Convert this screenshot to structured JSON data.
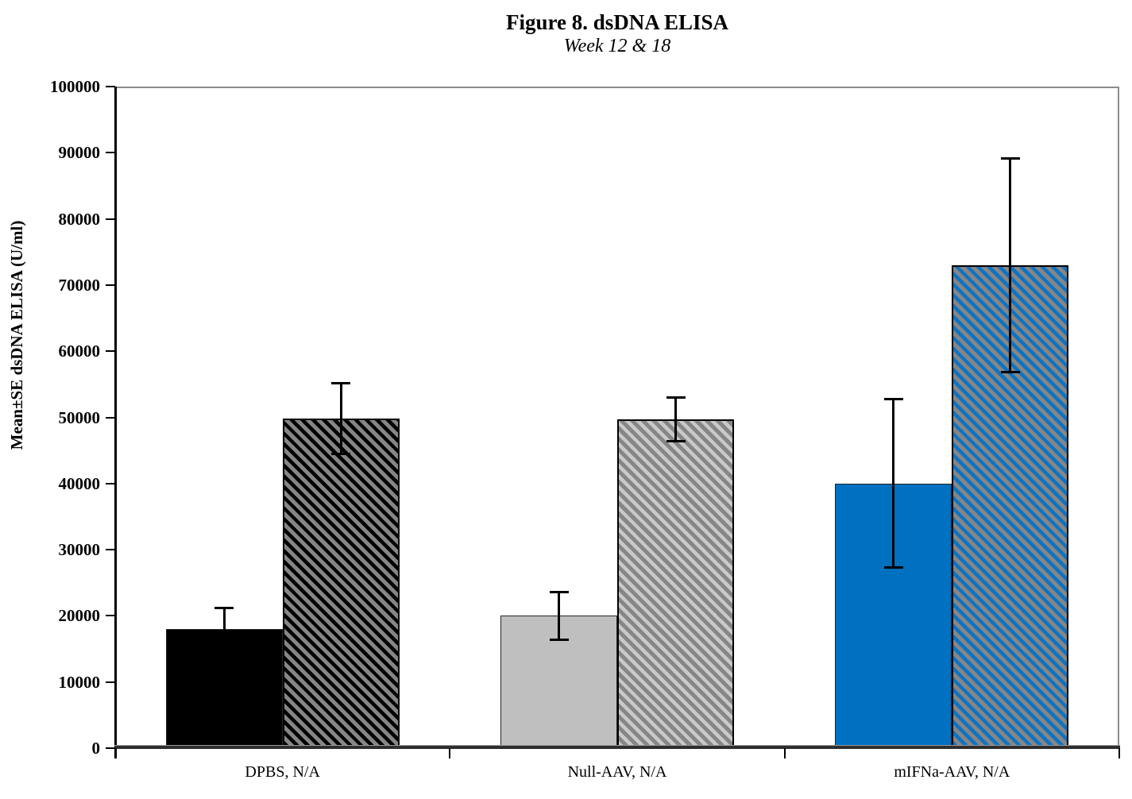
{
  "figure": {
    "title": "Figure 8. dsDNA ELISA",
    "subtitle": "Week 12 & 18"
  },
  "chart_data": {
    "type": "bar",
    "title": "Figure 8. dsDNA ELISA",
    "subtitle": "Week 12 & 18",
    "xlabel": "",
    "ylabel": "Mean±SE dsDNA ELISA (U/ml)",
    "ylim": [
      0,
      100000
    ],
    "yticks": [
      0,
      10000,
      20000,
      30000,
      40000,
      50000,
      60000,
      70000,
      80000,
      90000,
      100000
    ],
    "grid": false,
    "legend_position": "none",
    "error_bars": "plus-minus SE, black caps",
    "categories": [
      "DPBS, N/A",
      "Null-AAV, N/A",
      "mIFNa-AAV, N/A"
    ],
    "series": [
      {
        "name": "Week 12",
        "style": "solid",
        "values": [
          18000,
          20000,
          40000
        ],
        "errors": [
          3300,
          3700,
          12800
        ],
        "fill_colors": [
          "#000000",
          "#bfbfbf",
          "#0070c0"
        ]
      },
      {
        "name": "Week 18",
        "style": "hatched-diagonal",
        "values": [
          49800,
          49700,
          73000
        ],
        "errors": [
          5400,
          3400,
          16200
        ],
        "hatch_background": "#868686",
        "stripe_colors": [
          "#000000",
          "#c9c9c9",
          "#0d73c2"
        ]
      }
    ],
    "axis_colors": {
      "left_bottom_axis": "#000000",
      "top_right_border": "#8c8c8c"
    }
  }
}
